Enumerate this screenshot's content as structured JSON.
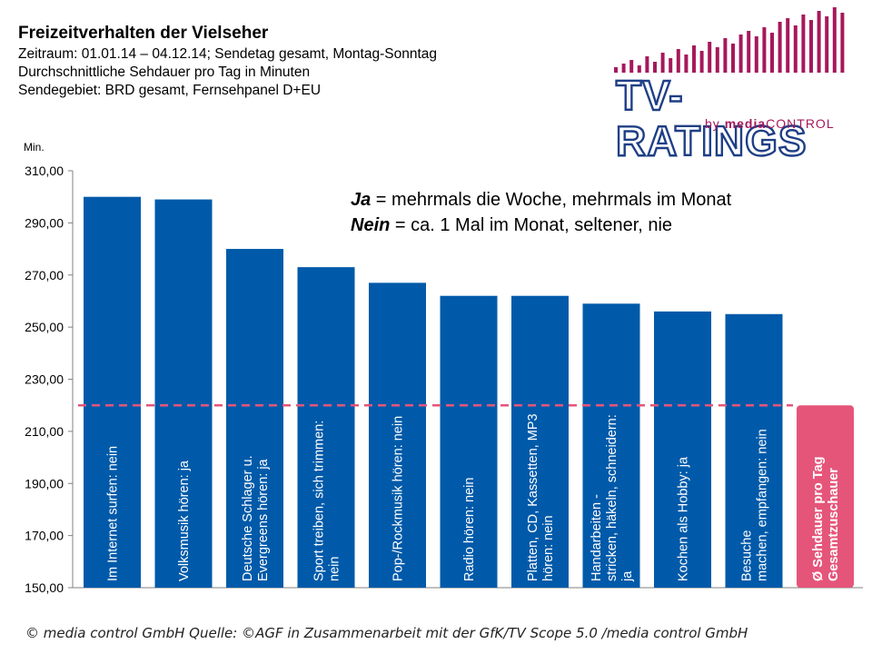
{
  "header": {
    "title": "Freizeitverhalten der Vielseher",
    "lines": [
      "Zeitraum: 01.01.14 – 04.12.14; Sendetag gesamt, Montag-Sonntag",
      "Durchschnittliche Sehdauer pro Tag in Minuten",
      "Sendegebiet: BRD gesamt, Fernsehpanel D+EU"
    ]
  },
  "logo": {
    "name": "TV-RATINGS",
    "by": "by",
    "brand_bold": "media",
    "brand_thin": "CONTROL",
    "colors": {
      "bars": "#a6185b",
      "text_outline": "#1f3f86"
    }
  },
  "legend_note": {
    "ja_term": "Ja",
    "ja_text": " = mehrmals die Woche, mehrmals im Monat",
    "nein_term": "Nein",
    "nein_text": " = ca. 1 Mal im Monat, seltener, nie"
  },
  "footer": "© media control GmbH  Quelle: ©AGF in Zusammenarbeit mit der GfK/TV Scope 5.0 /media control GmbH",
  "chart_data": {
    "type": "bar",
    "title": "",
    "ylabel": "Min.",
    "ylim": [
      150,
      310
    ],
    "yticks": [
      "150,00",
      "170,00",
      "190,00",
      "210,00",
      "230,00",
      "250,00",
      "270,00",
      "290,00",
      "310,00"
    ],
    "grid": false,
    "categories": [
      [
        "Im Internet surfen: nein"
      ],
      [
        "Volksmusik hören: ja"
      ],
      [
        "Deutsche Schlager u.",
        "Evergreens hören: ja"
      ],
      [
        "Sport treiben, sich trimmen:",
        "nein"
      ],
      [
        "Pop-/Rockmusik hören: nein"
      ],
      [
        "Radio hören: nein"
      ],
      [
        "Platten, CD, Kassetten, MP3",
        "hören: nein"
      ],
      [
        "Handarbeiten -",
        "stricken, häkeln, schneidern:",
        "ja"
      ],
      [
        "Kochen als Hobby: ja"
      ],
      [
        "Besuche",
        "machen, empfangen: nein"
      ],
      [
        "Ø Sehdauer pro Tag",
        "Gesamtzuschauer"
      ]
    ],
    "values": [
      300,
      299,
      280,
      273,
      267,
      262,
      262,
      259,
      256,
      255,
      220
    ],
    "colors": [
      "#005aa9",
      "#005aa9",
      "#005aa9",
      "#005aa9",
      "#005aa9",
      "#005aa9",
      "#005aa9",
      "#005aa9",
      "#005aa9",
      "#005aa9",
      "#e5557a"
    ],
    "reference_line": {
      "value": 220,
      "color": "#e5557a",
      "style": "dashed"
    }
  }
}
